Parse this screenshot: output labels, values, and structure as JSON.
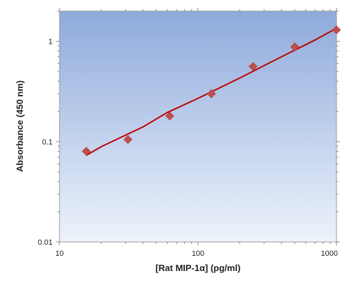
{
  "chart_data": {
    "type": "scatter",
    "xlabel": "[Rat MIP-1α] (pg/ml)",
    "ylabel": "Absorbance (450 nm)",
    "x_scale": "log",
    "y_scale": "log",
    "xlim": [
      10,
      1000
    ],
    "ylim": [
      0.01,
      2
    ],
    "x_ticks": [
      10,
      100,
      1000
    ],
    "x_tick_labels": [
      "10",
      "100",
      "1000"
    ],
    "y_ticks": [
      0.01,
      0.1,
      1
    ],
    "y_tick_labels": [
      "0.01",
      "0.1",
      "1"
    ],
    "grid": false,
    "colors": {
      "marker": "#c0504d",
      "line": "#c00000",
      "background_top": "#8eaadb",
      "background_bottom": "#eef3fb"
    },
    "series": [
      {
        "type": "scatter",
        "x": [
          15.6,
          31.2,
          62.5,
          125,
          250,
          500,
          1000
        ],
        "y": [
          0.08,
          0.105,
          0.18,
          0.3,
          0.56,
          0.88,
          1.3
        ]
      },
      {
        "type": "line",
        "x": [
          15.6,
          20,
          40,
          60,
          100,
          200,
          400,
          700,
          1000
        ],
        "y": [
          0.073,
          0.089,
          0.14,
          0.195,
          0.27,
          0.43,
          0.7,
          1.03,
          1.35
        ]
      }
    ]
  }
}
